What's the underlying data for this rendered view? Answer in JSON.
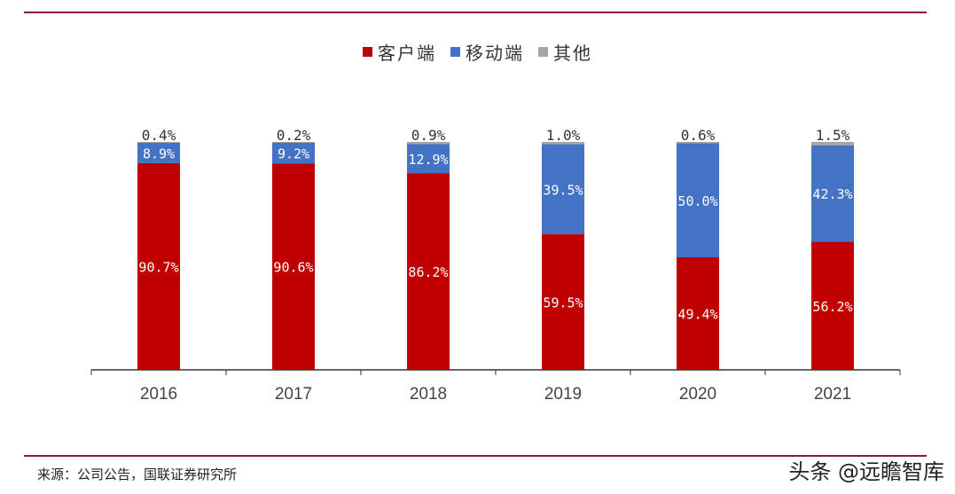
{
  "chart_data": {
    "type": "bar",
    "stacked": true,
    "categories": [
      "2016",
      "2017",
      "2018",
      "2019",
      "2020",
      "2021"
    ],
    "series": [
      {
        "name": "客户端",
        "color": "#c00000",
        "values": [
          90.7,
          90.6,
          86.2,
          59.5,
          49.4,
          56.2
        ],
        "labels": [
          "90.7%",
          "90.6%",
          "86.2%",
          "59.5%",
          "49.4%",
          "56.2%"
        ]
      },
      {
        "name": "移动端",
        "color": "#4472c4",
        "values": [
          8.9,
          9.2,
          12.9,
          39.5,
          50.0,
          42.3
        ],
        "labels": [
          "8.9%",
          "9.2%",
          "12.9%",
          "39.5%",
          "50.0%",
          "42.3%"
        ]
      },
      {
        "name": "其他",
        "color": "#a5a5a5",
        "values": [
          0.4,
          0.2,
          0.9,
          1.0,
          0.6,
          1.5
        ],
        "labels": [
          "0.4%",
          "0.2%",
          "0.9%",
          "1.0%",
          "0.6%",
          "1.5%"
        ]
      }
    ],
    "ylim": [
      0,
      100
    ],
    "grid": false,
    "legend_position": "top"
  },
  "source": "来源：公司公告，国联证券研究所",
  "watermark": "头条 @远瞻智库"
}
